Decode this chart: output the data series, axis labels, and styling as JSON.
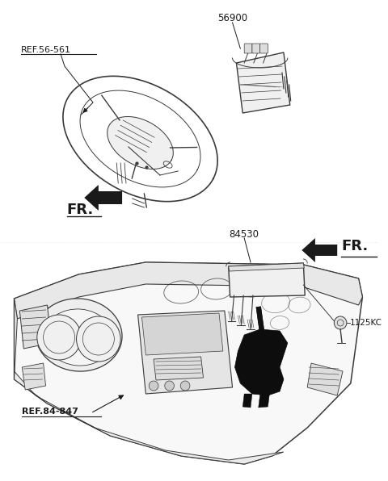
{
  "bg_color": "#ffffff",
  "line_color": "#3a3a3a",
  "dark_color": "#1a1a1a",
  "fig_width": 4.8,
  "fig_height": 5.96,
  "dpi": 100,
  "labels": {
    "ref_56_561": "REF.56-561",
    "part_56900": "56900",
    "fr_top": "FR.",
    "part_84530": "84530",
    "fr_bottom": "FR.",
    "ref_84_847": "REF.84-847",
    "part_1125KC": "1125KC"
  }
}
